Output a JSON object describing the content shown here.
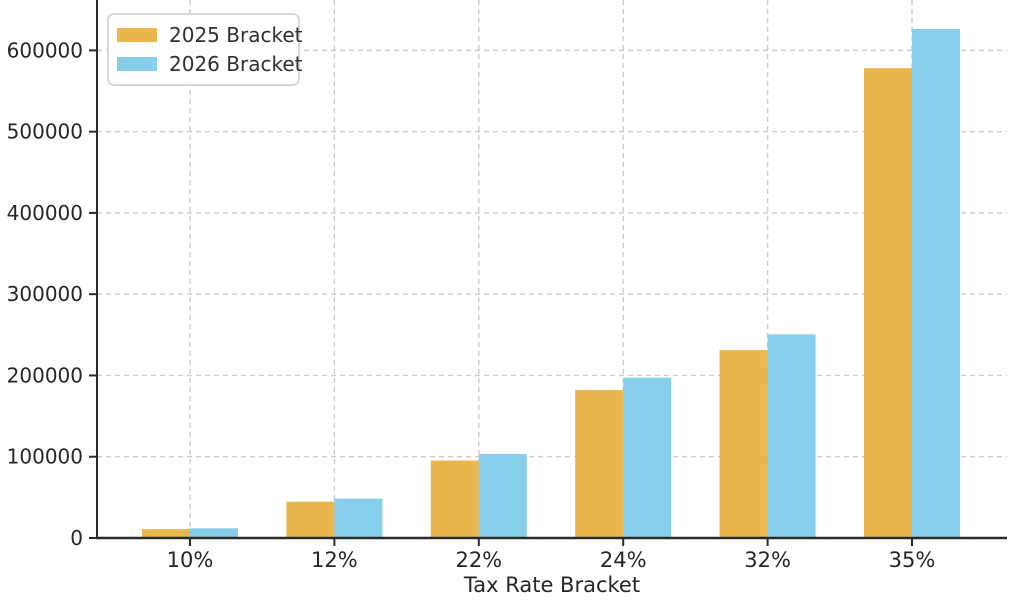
{
  "chart_data": {
    "type": "bar",
    "title": "",
    "xlabel": "Tax Rate Bracket",
    "ylabel": "",
    "categories": [
      "10%",
      "12%",
      "22%",
      "24%",
      "32%",
      "35%"
    ],
    "series": [
      {
        "name": "2025 Bracket",
        "color": "#EAB64E",
        "values": [
          11000,
          44725,
          95375,
          182100,
          231250,
          578125
        ]
      },
      {
        "name": "2026 Bracket",
        "color": "#87CEEB",
        "values": [
          11925,
          48475,
          103350,
          197300,
          250525,
          626350
        ]
      }
    ],
    "ylim": [
      0,
      662000
    ],
    "yticks": [
      0,
      100000,
      200000,
      300000,
      400000,
      500000,
      600000
    ],
    "grid": "dashed-both-axes",
    "grid_color": "#cccccc",
    "spine_color": "#2b2b2b",
    "tick_label_color": "#262626",
    "legend_position": "top-left"
  }
}
